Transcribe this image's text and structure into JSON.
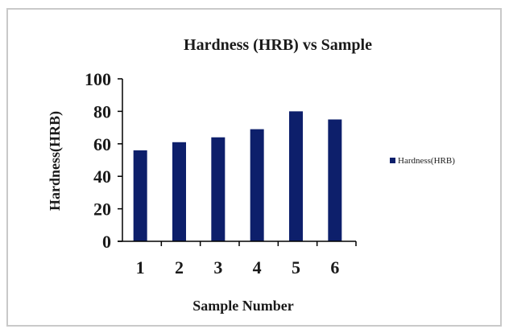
{
  "chart_data": {
    "type": "bar",
    "title": "Hardness (HRB) vs Sample",
    "xlabel": "Sample Number",
    "ylabel": "Hardness(HRB)",
    "categories": [
      "1",
      "2",
      "3",
      "4",
      "5",
      "6"
    ],
    "series": [
      {
        "name": "Hardness(HRB)",
        "values": [
          56,
          61,
          64,
          69,
          80,
          75
        ],
        "color": "#0d1f6b"
      }
    ],
    "ylim": [
      0,
      100
    ],
    "yticks": [
      "0",
      "20",
      "40",
      "60",
      "80",
      "100"
    ],
    "grid": false,
    "legend": "right"
  }
}
